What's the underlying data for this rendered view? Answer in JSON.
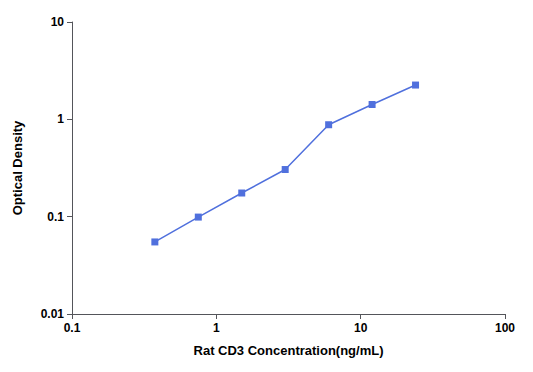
{
  "chart_data": {
    "type": "line",
    "xlabel": "Rat CD3 Concentration(ng/mL)",
    "ylabel": "Optical Density",
    "x": [
      0.375,
      0.75,
      1.5,
      3.0,
      6.0,
      12.0,
      24.0
    ],
    "values": [
      0.055,
      0.099,
      0.175,
      0.305,
      0.88,
      1.42,
      2.25
    ],
    "xlim": [
      0.1,
      100
    ],
    "ylim": [
      0.01,
      10
    ],
    "xticks": [
      0.1,
      1,
      10,
      100
    ],
    "yticks": [
      0.01,
      0.1,
      1,
      10
    ],
    "log": true,
    "grid": false,
    "marker": "square",
    "line_style": "solid"
  }
}
